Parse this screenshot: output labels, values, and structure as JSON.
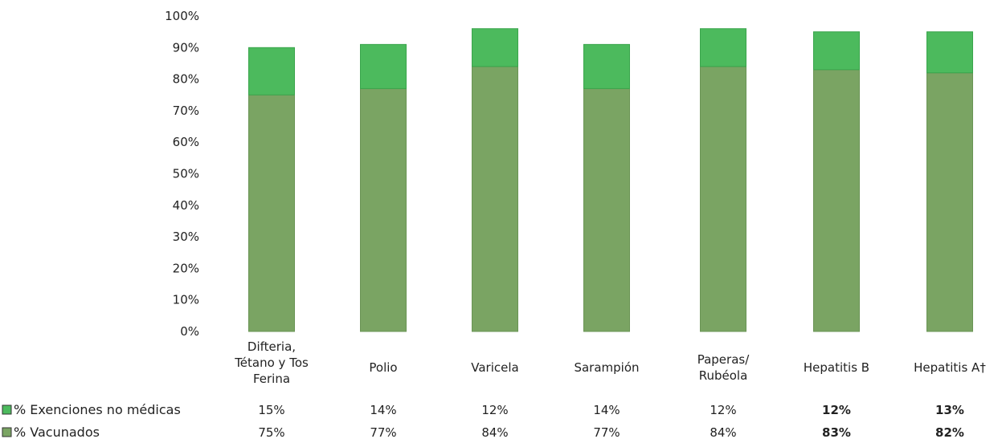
{
  "chart_data": {
    "type": "bar",
    "stacked": true,
    "categories": [
      [
        "Difteria,",
        "Tétano y Tos",
        "Ferina"
      ],
      [
        "Polio"
      ],
      [
        "Varicela"
      ],
      [
        "Sarampión"
      ],
      [
        "Paperas/",
        "Rubéola"
      ],
      [
        "Hepatitis B"
      ],
      [
        "Hepatitis A†"
      ]
    ],
    "series": [
      {
        "name": "% Vacunados",
        "color": "#7aa463",
        "values": [
          75,
          77,
          84,
          77,
          84,
          83,
          82
        ],
        "labels": [
          "75%",
          "77%",
          "84%",
          "77%",
          "84%",
          "83%",
          "82%"
        ]
      },
      {
        "name": "% Exenciones no médicas",
        "color": "#4cba5d",
        "values": [
          15,
          14,
          12,
          14,
          12,
          12,
          13
        ],
        "labels": [
          "15%",
          "14%",
          "12%",
          "14%",
          "12%",
          "12%",
          "13%"
        ]
      }
    ],
    "bold_label_indices": [
      5,
      6
    ],
    "ylim": [
      0,
      100
    ],
    "yticks": [
      "0%",
      "10%",
      "20%",
      "30%",
      "40%",
      "50%",
      "60%",
      "70%",
      "80%",
      "90%",
      "100%"
    ],
    "grid": false,
    "legend": "bottom-left data table"
  }
}
